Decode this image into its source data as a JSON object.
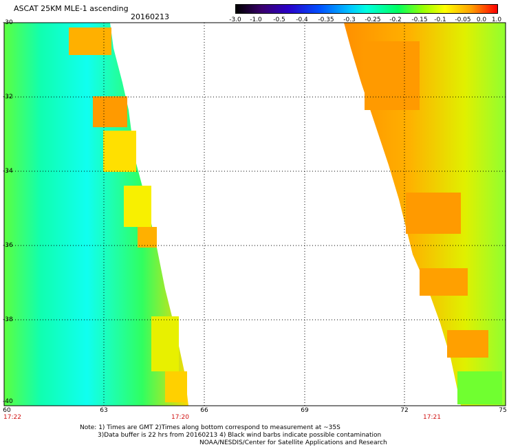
{
  "header": {
    "title": "ASCAT 25KM MLE-1 ascending",
    "date": "20160213"
  },
  "colorbar": {
    "ticks": [
      "-3.0",
      "-1.0",
      "-0.5",
      "-0.4",
      "-0.35",
      "-0.3",
      "-0.25",
      "-0.2",
      "-0.15",
      "-0.1",
      "-0.05",
      "0.0",
      "1.0"
    ],
    "colors": [
      "#000000",
      "#3a006e",
      "#2a00c8",
      "#0050ff",
      "#00c8ff",
      "#00ffe0",
      "#00ff60",
      "#9cff00",
      "#ffff00",
      "#ffa000",
      "#ff0000"
    ]
  },
  "axes": {
    "lat_labels": [
      "-30",
      "-32",
      "-34",
      "-36",
      "-38",
      "-40"
    ],
    "lon_labels": [
      "60",
      "63",
      "66",
      "69",
      "72",
      "75"
    ]
  },
  "times": {
    "left_start": "17:22",
    "left_end": "17:20",
    "right": "17:21"
  },
  "notes": {
    "line1": "Note: 1) Times are GMT 2)Times along bottom correspond to measurement at ~35S",
    "line2": "3)Data buffer is 22 hrs from 20160213 4) Black wind barbs indicate possible contamination",
    "line3": "NOAA/NESDIS/Center for Satellite Applications and Research"
  }
}
